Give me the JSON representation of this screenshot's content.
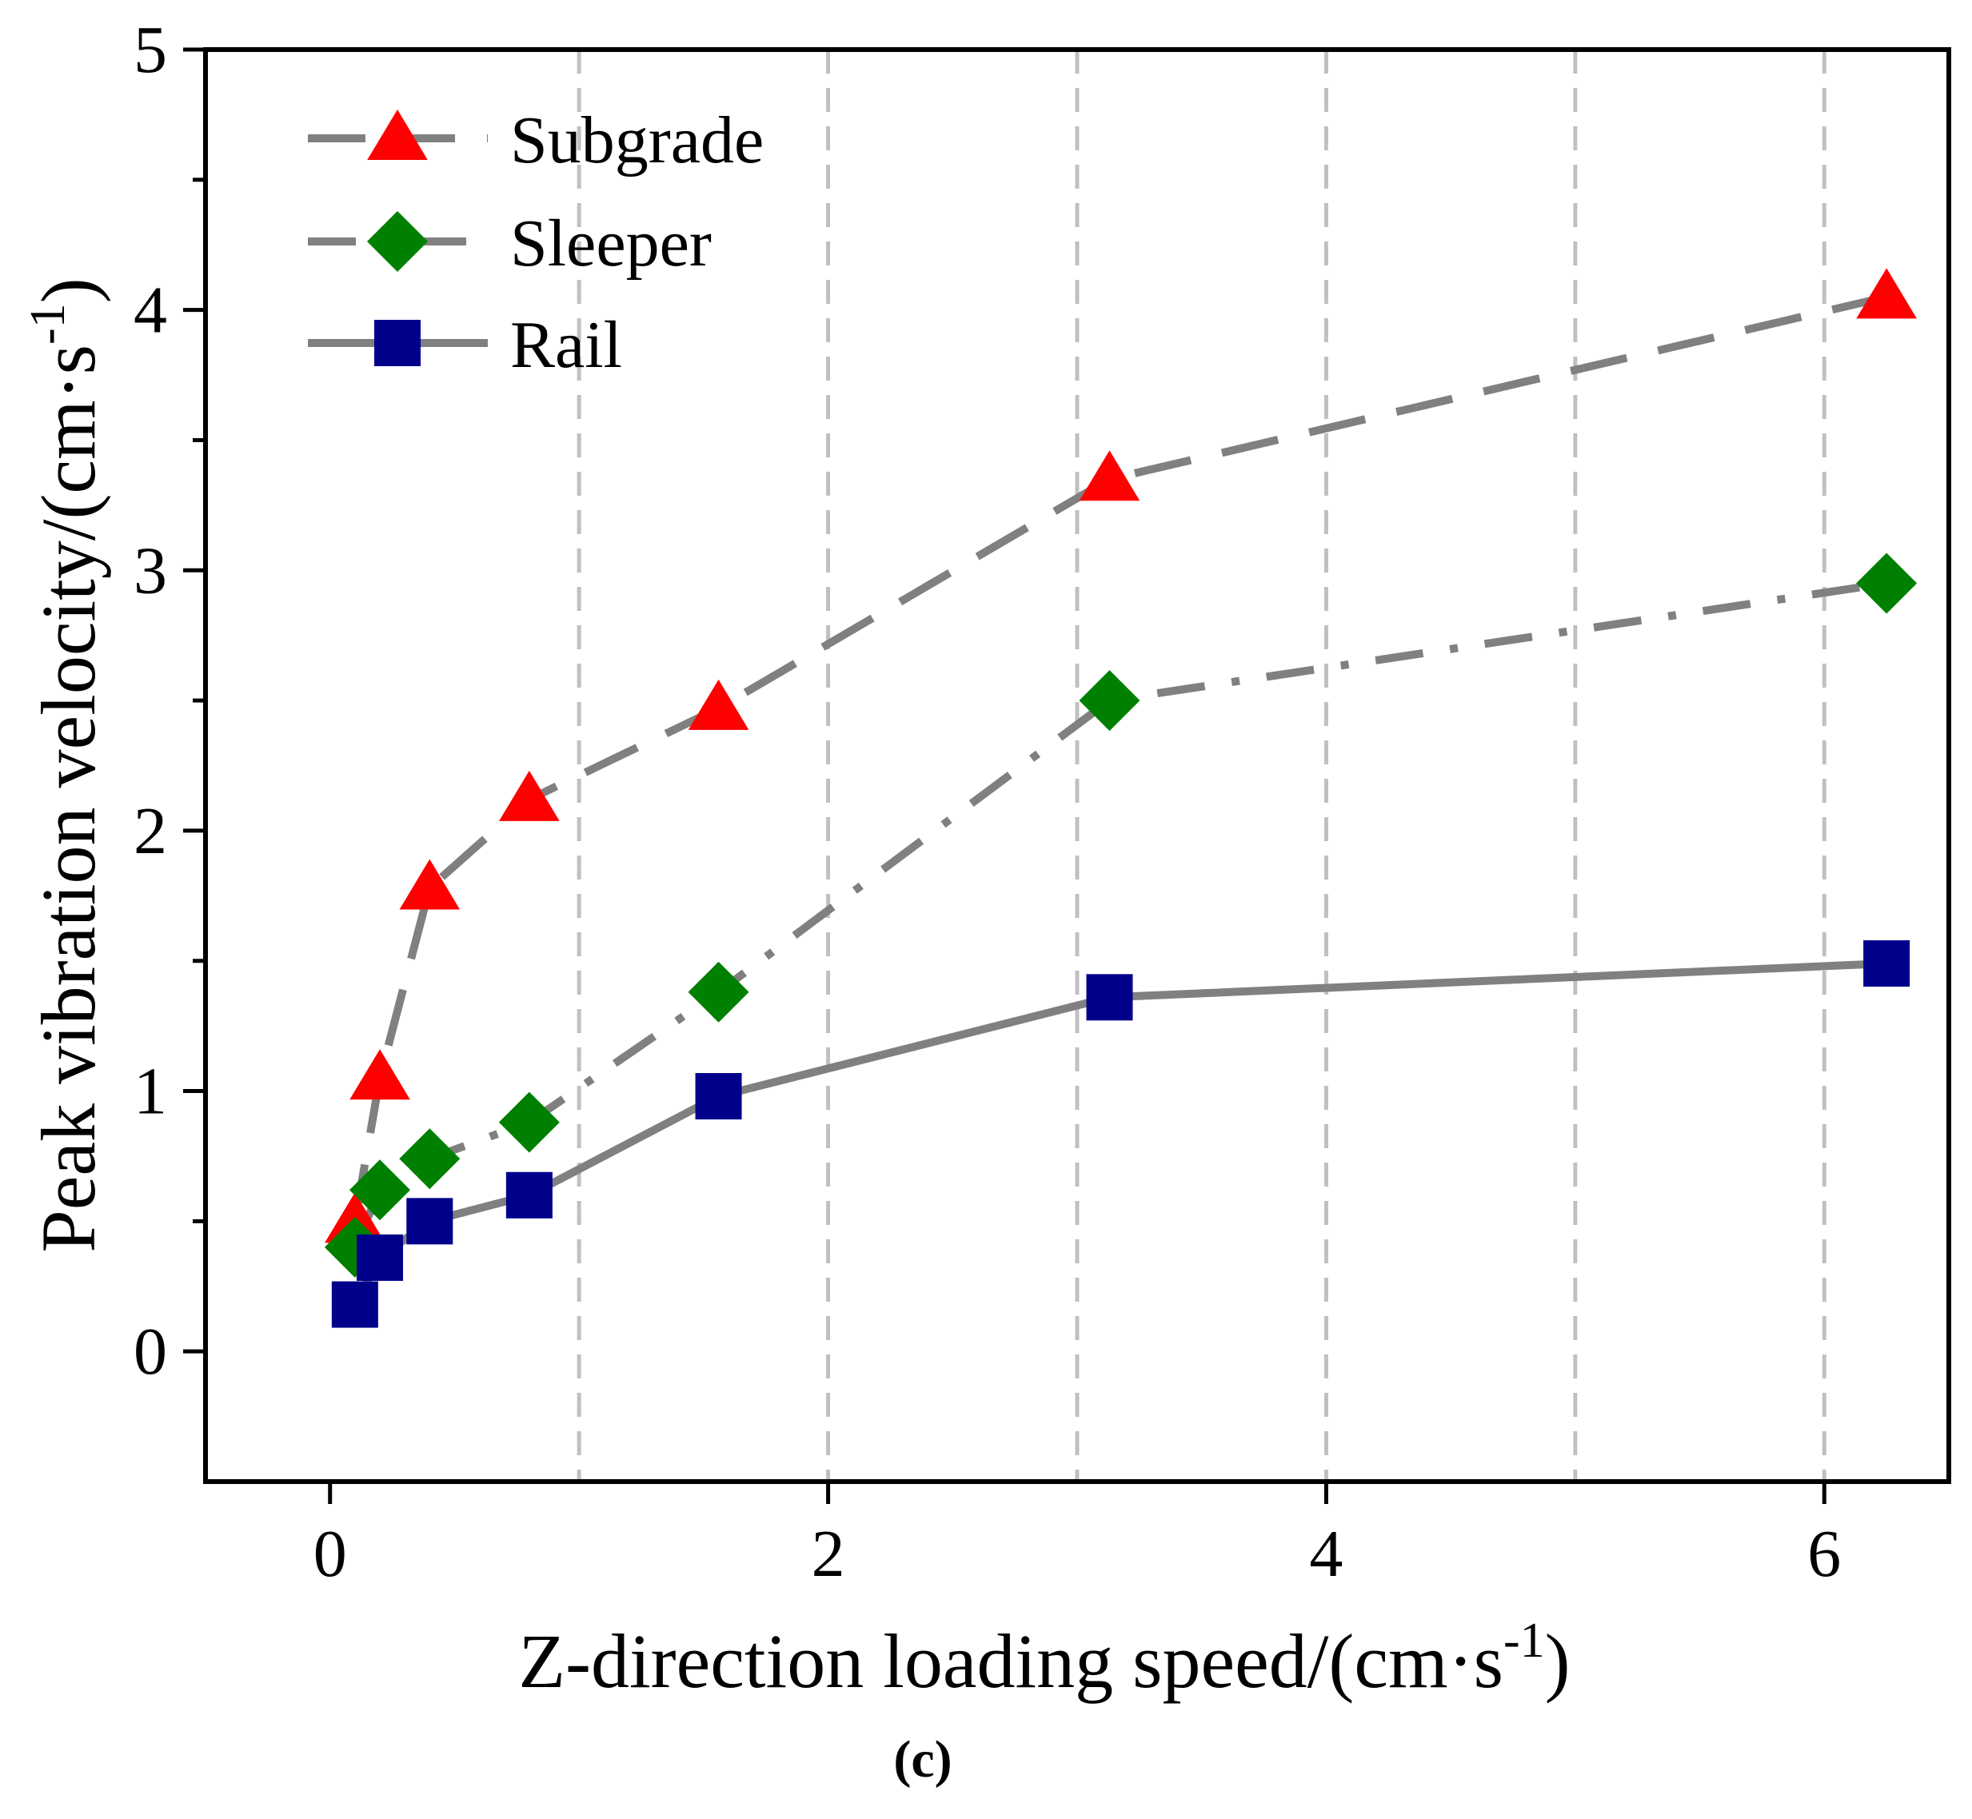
{
  "chart_data": {
    "type": "line",
    "caption": "(c)",
    "xlabel": "Z-direction loading speed/(cm·s",
    "xlabel_sup": "-1",
    "xlabel_close": ")",
    "ylabel": "Peak vibration velocity/(cm·s",
    "ylabel_sup": "-1",
    "ylabel_close": ")",
    "xlim": [
      -0.5,
      6.5
    ],
    "ylim": [
      -0.5,
      5
    ],
    "xticks": [
      0,
      2,
      4,
      6
    ],
    "xtick_labels": [
      "0",
      "2",
      "4",
      "6"
    ],
    "yticks": [
      0,
      1,
      2,
      3,
      4,
      5
    ],
    "ytick_labels": [
      "0",
      "1",
      "2",
      "3",
      "4",
      "5"
    ],
    "y_minor_ticks": [
      0.5,
      1.5,
      2.5,
      3.5,
      4.5
    ],
    "vgrid_x": [
      1,
      2,
      3,
      4,
      5,
      6
    ],
    "legend_position": "top-left",
    "x": [
      0.1,
      0.2,
      0.4,
      0.8,
      1.56,
      3.13,
      6.25
    ],
    "series": [
      {
        "name": "Subgrade",
        "marker": "triangle",
        "marker_color": "#ff0000",
        "line_style": "dash",
        "values": [
          0.5,
          1.05,
          1.78,
          2.12,
          2.47,
          3.35,
          4.05
        ]
      },
      {
        "name": "Sleeper",
        "marker": "diamond",
        "marker_color": "#008000",
        "line_style": "dashdot",
        "values": [
          0.4,
          0.62,
          0.74,
          0.88,
          1.38,
          2.5,
          2.95
        ]
      },
      {
        "name": "Rail",
        "marker": "square",
        "marker_color": "#00008b",
        "line_style": "solid",
        "values": [
          0.18,
          0.36,
          0.5,
          0.6,
          0.98,
          1.36,
          1.49
        ]
      }
    ],
    "line_color": "#808080",
    "grid_color": "#c0c0c0"
  }
}
